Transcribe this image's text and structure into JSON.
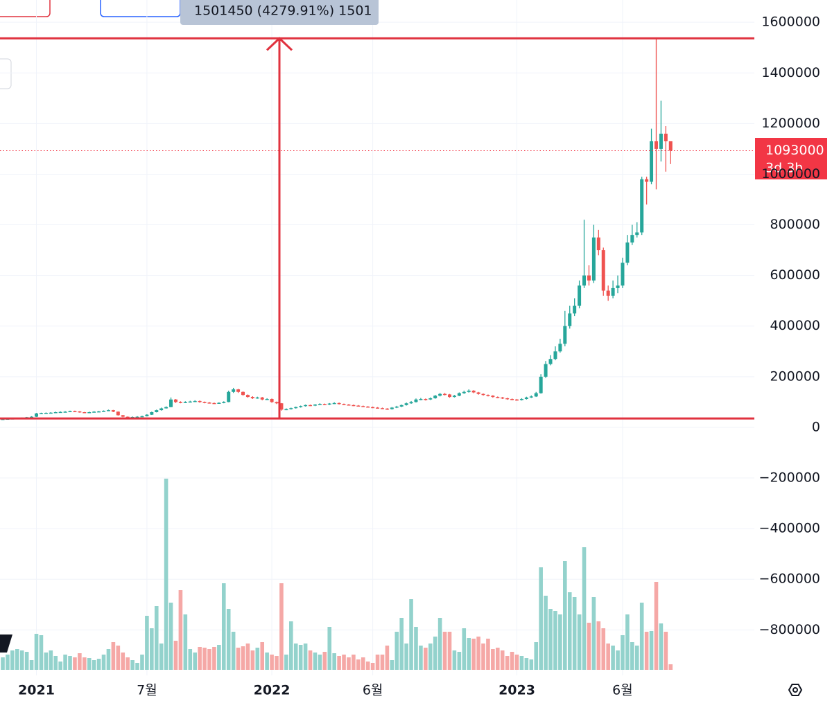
{
  "chart_data": {
    "type": "candlestick",
    "categories": [
      null,
      null,
      null,
      null,
      null,
      null,
      null,
      "2021",
      null,
      null,
      null,
      null,
      null,
      null,
      null,
      null,
      null,
      null,
      null,
      null,
      null,
      null,
      null,
      null,
      null,
      null,
      null,
      null,
      null,
      null,
      "7월",
      null,
      null,
      null,
      null,
      null,
      null,
      null,
      null,
      null,
      null,
      null,
      null,
      null,
      null,
      null,
      null,
      null,
      null,
      null,
      null,
      null,
      null,
      null,
      null,
      null,
      "2022",
      null,
      null,
      null,
      null,
      null,
      null,
      null,
      null,
      null,
      null,
      null,
      null,
      null,
      null,
      null,
      null,
      null,
      null,
      null,
      null,
      "6월",
      null,
      null,
      null,
      null,
      null,
      null,
      null,
      null,
      null,
      null,
      null,
      null,
      null,
      null,
      null,
      null,
      null,
      null,
      null,
      null,
      null,
      null,
      null,
      null,
      null,
      null,
      null,
      null,
      null,
      "2023",
      null,
      null,
      null,
      null,
      null,
      null,
      null,
      null,
      null,
      null,
      null,
      null,
      null,
      null,
      null,
      null,
      null,
      null,
      null,
      null,
      null,
      "6월",
      null,
      null,
      null,
      null,
      null,
      null,
      null,
      null,
      null,
      null
    ],
    "ohlc": [
      [
        32000,
        35000,
        31000,
        33000
      ],
      [
        33000,
        35000,
        32000,
        34000
      ],
      [
        34000,
        36000,
        33000,
        35000
      ],
      [
        35000,
        37000,
        34000,
        36000
      ],
      [
        36000,
        39000,
        35000,
        38000
      ],
      [
        38000,
        41000,
        37000,
        40000
      ],
      [
        40000,
        44000,
        39000,
        42000
      ],
      [
        42000,
        57000,
        41000,
        55000
      ],
      [
        55000,
        58000,
        53000,
        56000
      ],
      [
        56000,
        59000,
        54000,
        57000
      ],
      [
        57000,
        60000,
        55000,
        58000
      ],
      [
        58000,
        62000,
        56000,
        60000
      ],
      [
        60000,
        63000,
        58000,
        61000
      ],
      [
        61000,
        64000,
        59000,
        62000
      ],
      [
        62000,
        66000,
        60000,
        64000
      ],
      [
        64000,
        66000,
        61000,
        63000
      ],
      [
        63000,
        64000,
        58000,
        60000
      ],
      [
        60000,
        61000,
        56000,
        58000
      ],
      [
        58000,
        62000,
        57000,
        60000
      ],
      [
        60000,
        64000,
        59000,
        62000
      ],
      [
        62000,
        65000,
        61000,
        63000
      ],
      [
        63000,
        67000,
        62000,
        65000
      ],
      [
        65000,
        70000,
        64000,
        68000
      ],
      [
        68000,
        69000,
        60000,
        62000
      ],
      [
        62000,
        63000,
        46000,
        48000
      ],
      [
        48000,
        49000,
        40000,
        42000
      ],
      [
        42000,
        43000,
        38000,
        40000
      ],
      [
        40000,
        43000,
        39000,
        41000
      ],
      [
        41000,
        44000,
        40000,
        42000
      ],
      [
        42000,
        46000,
        41000,
        44000
      ],
      [
        44000,
        52000,
        43000,
        50000
      ],
      [
        50000,
        62000,
        49000,
        60000
      ],
      [
        60000,
        70000,
        59000,
        68000
      ],
      [
        68000,
        78000,
        66000,
        75000
      ],
      [
        75000,
        83000,
        74000,
        80000
      ],
      [
        80000,
        118000,
        79000,
        110000
      ],
      [
        110000,
        112000,
        96000,
        100000
      ],
      [
        100000,
        103000,
        95000,
        98000
      ],
      [
        98000,
        103000,
        96000,
        100000
      ],
      [
        100000,
        105000,
        98000,
        102000
      ],
      [
        102000,
        107000,
        100000,
        104000
      ],
      [
        104000,
        106000,
        97000,
        100000
      ],
      [
        100000,
        102000,
        95000,
        98000
      ],
      [
        98000,
        100000,
        94000,
        96000
      ],
      [
        96000,
        98000,
        93000,
        95000
      ],
      [
        95000,
        99000,
        93000,
        97000
      ],
      [
        97000,
        103000,
        95000,
        100000
      ],
      [
        100000,
        145000,
        99000,
        140000
      ],
      [
        140000,
        156000,
        136000,
        150000
      ],
      [
        150000,
        152000,
        136000,
        140000
      ],
      [
        140000,
        142000,
        125000,
        128000
      ],
      [
        128000,
        130000,
        117000,
        120000
      ],
      [
        120000,
        123000,
        112000,
        115000
      ],
      [
        115000,
        121000,
        113000,
        118000
      ],
      [
        118000,
        120000,
        107000,
        110000
      ],
      [
        110000,
        115000,
        108000,
        112000
      ],
      [
        112000,
        114000,
        97000,
        100000
      ],
      [
        100000,
        102000,
        92000,
        95000
      ],
      [
        95000,
        96000,
        66000,
        70000
      ],
      [
        70000,
        75000,
        68000,
        72000
      ],
      [
        72000,
        78000,
        70000,
        76000
      ],
      [
        76000,
        82000,
        74000,
        80000
      ],
      [
        80000,
        86000,
        78000,
        84000
      ],
      [
        84000,
        90000,
        82000,
        88000
      ],
      [
        88000,
        90000,
        84000,
        86000
      ],
      [
        86000,
        92000,
        84000,
        90000
      ],
      [
        90000,
        95000,
        88000,
        92000
      ],
      [
        92000,
        94000,
        88000,
        90000
      ],
      [
        90000,
        96000,
        88000,
        94000
      ],
      [
        94000,
        99000,
        92000,
        96000
      ],
      [
        96000,
        98000,
        90000,
        92000
      ],
      [
        92000,
        94000,
        88000,
        90000
      ],
      [
        90000,
        92000,
        86000,
        88000
      ],
      [
        88000,
        90000,
        84000,
        86000
      ],
      [
        86000,
        88000,
        82000,
        84000
      ],
      [
        84000,
        86000,
        80000,
        82000
      ],
      [
        82000,
        84000,
        78000,
        80000
      ],
      [
        80000,
        82000,
        76000,
        78000
      ],
      [
        78000,
        80000,
        74000,
        76000
      ],
      [
        76000,
        78000,
        72000,
        74000
      ],
      [
        74000,
        76000,
        69000,
        72000
      ],
      [
        72000,
        80000,
        70000,
        78000
      ],
      [
        78000,
        85000,
        76000,
        82000
      ],
      [
        82000,
        90000,
        80000,
        88000
      ],
      [
        88000,
        98000,
        86000,
        95000
      ],
      [
        95000,
        104000,
        93000,
        100000
      ],
      [
        100000,
        114000,
        98000,
        110000
      ],
      [
        110000,
        116000,
        107000,
        112000
      ],
      [
        112000,
        114000,
        106000,
        110000
      ],
      [
        110000,
        118000,
        108000,
        115000
      ],
      [
        115000,
        128000,
        113000,
        125000
      ],
      [
        125000,
        136000,
        122000,
        132000
      ],
      [
        132000,
        136000,
        126000,
        130000
      ],
      [
        130000,
        132000,
        117000,
        120000
      ],
      [
        120000,
        128000,
        118000,
        125000
      ],
      [
        125000,
        138000,
        123000,
        135000
      ],
      [
        135000,
        145000,
        132000,
        140000
      ],
      [
        140000,
        150000,
        137000,
        145000
      ],
      [
        145000,
        147000,
        135000,
        138000
      ],
      [
        138000,
        140000,
        129000,
        132000
      ],
      [
        132000,
        134000,
        125000,
        128000
      ],
      [
        128000,
        130000,
        122000,
        125000
      ],
      [
        125000,
        127000,
        117000,
        120000
      ],
      [
        120000,
        122000,
        115000,
        118000
      ],
      [
        118000,
        120000,
        112000,
        115000
      ],
      [
        115000,
        117000,
        109000,
        112000
      ],
      [
        112000,
        114000,
        107000,
        110000
      ],
      [
        110000,
        112000,
        105000,
        108000
      ],
      [
        108000,
        115000,
        106000,
        112000
      ],
      [
        112000,
        121000,
        110000,
        118000
      ],
      [
        118000,
        126000,
        116000,
        122000
      ],
      [
        122000,
        140000,
        120000,
        135000
      ],
      [
        135000,
        210000,
        133000,
        200000
      ],
      [
        200000,
        262000,
        195000,
        250000
      ],
      [
        250000,
        285000,
        245000,
        270000
      ],
      [
        270000,
        320000,
        265000,
        300000
      ],
      [
        300000,
        350000,
        295000,
        330000
      ],
      [
        330000,
        460000,
        320000,
        400000
      ],
      [
        400000,
        480000,
        390000,
        450000
      ],
      [
        450000,
        510000,
        440000,
        480000
      ],
      [
        480000,
        580000,
        470000,
        560000
      ],
      [
        560000,
        820000,
        550000,
        600000
      ],
      [
        600000,
        640000,
        560000,
        580000
      ],
      [
        580000,
        800000,
        570000,
        750000
      ],
      [
        750000,
        780000,
        680000,
        700000
      ],
      [
        700000,
        710000,
        520000,
        540000
      ],
      [
        540000,
        560000,
        500000,
        520000
      ],
      [
        520000,
        580000,
        510000,
        550000
      ],
      [
        550000,
        600000,
        530000,
        560000
      ],
      [
        560000,
        670000,
        550000,
        650000
      ],
      [
        650000,
        760000,
        640000,
        730000
      ],
      [
        730000,
        800000,
        720000,
        760000
      ],
      [
        760000,
        810000,
        750000,
        770000
      ],
      [
        770000,
        990000,
        760000,
        980000
      ],
      [
        980000,
        990000,
        880000,
        970000
      ],
      [
        970000,
        1180000,
        960000,
        1130000
      ],
      [
        1130000,
        1536000,
        940000,
        1100000
      ],
      [
        1100000,
        1290000,
        1050000,
        1160000
      ],
      [
        1160000,
        1190000,
        1010000,
        1130000
      ],
      [
        1130000,
        1130000,
        1040000,
        1093000
      ]
    ],
    "volume": [
      18,
      22,
      28,
      30,
      28,
      26,
      14,
      52,
      50,
      25,
      28,
      20,
      12,
      22,
      20,
      18,
      24,
      18,
      17,
      14,
      16,
      22,
      30,
      40,
      35,
      25,
      18,
      14,
      10,
      22,
      78,
      60,
      92,
      38,
      276,
      97,
      42,
      115,
      80,
      30,
      25,
      33,
      32,
      30,
      33,
      36,
      125,
      88,
      55,
      32,
      34,
      38,
      28,
      32,
      40,
      25,
      22,
      20,
      125,
      22,
      70,
      38,
      36,
      38,
      28,
      25,
      22,
      26,
      62,
      24,
      20,
      22,
      18,
      22,
      15,
      18,
      12,
      10,
      22,
      22,
      35,
      14,
      55,
      75,
      38,
      102,
      62,
      35,
      32,
      38,
      48,
      75,
      55,
      55,
      28,
      26,
      60,
      46,
      45,
      48,
      38,
      45,
      30,
      32,
      28,
      20,
      26,
      22,
      20,
      17,
      15,
      40,
      148,
      107,
      88,
      85,
      80,
      157,
      112,
      105,
      80,
      177,
      68,
      105,
      70,
      60,
      38,
      35,
      28,
      50,
      80,
      40,
      35,
      97,
      55,
      56,
      127,
      67,
      55,
      8
    ],
    "up_color": "#26a69a",
    "down_color": "#ef5350",
    "volume_up_color": "#93d2cc",
    "volume_down_color": "#f5a8a6",
    "ylim": [
      -966000,
      1688000
    ],
    "yticks": [
      1600000,
      1400000,
      1200000,
      1000000,
      800000,
      600000,
      400000,
      200000,
      0,
      {
        "value": -200000,
        "label": "−200000"
      },
      {
        "value": -400000,
        "label": "−400000"
      },
      {
        "value": -600000,
        "label": "−600000"
      },
      {
        "value": -800000,
        "label": "−800000"
      }
    ],
    "grid": true,
    "measure": {
      "from": 35081,
      "to": 1536531,
      "label": "1501450 (4279.91%) 1501",
      "color": "#e0323f"
    },
    "countdown": "3d 3h"
  }
}
